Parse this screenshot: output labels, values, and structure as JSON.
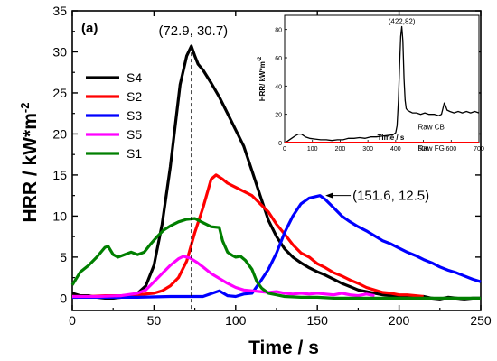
{
  "chart_data": [
    {
      "type": "line",
      "panel_label": "(a)",
      "xlabel": "Time / s",
      "ylabel": "HRR / kW*m",
      "ylabel_superscript": "-2",
      "xlim": [
        0,
        250
      ],
      "ylim": [
        -1.5,
        35
      ],
      "x_ticks": [
        0,
        50,
        100,
        150,
        200,
        250
      ],
      "y_ticks": [
        0,
        5,
        10,
        15,
        20,
        25,
        30,
        35
      ],
      "legend_position": "left",
      "annotations": [
        {
          "text": "(72.9, 30.7)",
          "x": 72.9,
          "y": 30.7,
          "marker": "dashed-vertical-line"
        },
        {
          "text": "(151.6, 12.5)",
          "x": 151.6,
          "y": 12.5,
          "marker": "arrow"
        }
      ],
      "series": [
        {
          "name": "S4",
          "color": "#000000",
          "points": [
            [
              0,
              0.6
            ],
            [
              5,
              0.3
            ],
            [
              10,
              0.3
            ],
            [
              15,
              0.1
            ],
            [
              20,
              0
            ],
            [
              25,
              0
            ],
            [
              30,
              0.1
            ],
            [
              35,
              0.3
            ],
            [
              40,
              0.6
            ],
            [
              45,
              1.5
            ],
            [
              50,
              4
            ],
            [
              55,
              9
            ],
            [
              60,
              16
            ],
            [
              63,
              21
            ],
            [
              66,
              26
            ],
            [
              70,
              29.5
            ],
            [
              72.9,
              30.7
            ],
            [
              75,
              29.5
            ],
            [
              77,
              28.5
            ],
            [
              80,
              27.8
            ],
            [
              85,
              26.2
            ],
            [
              90,
              24.5
            ],
            [
              95,
              22.5
            ],
            [
              100,
              20.5
            ],
            [
              105,
              18.5
            ],
            [
              110,
              15.5
            ],
            [
              115,
              12.5
            ],
            [
              120,
              9.5
            ],
            [
              125,
              7.5
            ],
            [
              130,
              6
            ],
            [
              135,
              5
            ],
            [
              140,
              4.3
            ],
            [
              145,
              3.7
            ],
            [
              150,
              3.2
            ],
            [
              155,
              2.8
            ],
            [
              160,
              2.3
            ],
            [
              165,
              1.8
            ],
            [
              170,
              1.4
            ],
            [
              175,
              1
            ],
            [
              180,
              0.8
            ],
            [
              185,
              0.6
            ],
            [
              190,
              0.4
            ],
            [
              195,
              0.3
            ],
            [
              200,
              0.2
            ],
            [
              205,
              0.3
            ],
            [
              210,
              0.1
            ],
            [
              215,
              0.2
            ],
            [
              220,
              0
            ],
            [
              225,
              -0.1
            ],
            [
              230,
              0.1
            ],
            [
              235,
              0
            ],
            [
              240,
              -0.1
            ],
            [
              245,
              0
            ],
            [
              250,
              0
            ]
          ]
        },
        {
          "name": "S2",
          "color": "#ff0000",
          "points": [
            [
              0,
              0.2
            ],
            [
              10,
              0.2
            ],
            [
              20,
              0.3
            ],
            [
              30,
              0.3
            ],
            [
              40,
              0.4
            ],
            [
              50,
              0.6
            ],
            [
              55,
              0.9
            ],
            [
              60,
              1.5
            ],
            [
              65,
              2.5
            ],
            [
              70,
              4.5
            ],
            [
              75,
              8
            ],
            [
              80,
              11
            ],
            [
              85,
              14.5
            ],
            [
              88,
              15
            ],
            [
              92,
              14.5
            ],
            [
              95,
              14
            ],
            [
              100,
              13.5
            ],
            [
              105,
              13
            ],
            [
              110,
              12.5
            ],
            [
              115,
              11.5
            ],
            [
              120,
              10.5
            ],
            [
              125,
              9
            ],
            [
              130,
              7.8
            ],
            [
              135,
              6.5
            ],
            [
              140,
              5.5
            ],
            [
              145,
              5
            ],
            [
              150,
              4.2
            ],
            [
              155,
              3.7
            ],
            [
              160,
              3.1
            ],
            [
              165,
              2.7
            ],
            [
              170,
              2.2
            ],
            [
              175,
              1.8
            ],
            [
              180,
              1.3
            ],
            [
              185,
              1
            ],
            [
              190,
              0.7
            ],
            [
              195,
              0.6
            ],
            [
              200,
              0.4
            ],
            [
              205,
              0.4
            ],
            [
              210,
              0.3
            ],
            [
              215,
              0.2
            ]
          ]
        },
        {
          "name": "S3",
          "color": "#0000ff",
          "points": [
            [
              0,
              0.1
            ],
            [
              20,
              0.1
            ],
            [
              40,
              0.1
            ],
            [
              60,
              0.2
            ],
            [
              80,
              0.2
            ],
            [
              90,
              0.9
            ],
            [
              95,
              0.3
            ],
            [
              100,
              0.2
            ],
            [
              105,
              0.5
            ],
            [
              110,
              0.6
            ],
            [
              115,
              2
            ],
            [
              120,
              3.5
            ],
            [
              125,
              5.5
            ],
            [
              130,
              8
            ],
            [
              135,
              10
            ],
            [
              140,
              11.5
            ],
            [
              145,
              12.2
            ],
            [
              151.6,
              12.5
            ],
            [
              155,
              12
            ],
            [
              160,
              11
            ],
            [
              165,
              10
            ],
            [
              170,
              9.3
            ],
            [
              175,
              8.7
            ],
            [
              180,
              8.2
            ],
            [
              185,
              7.6
            ],
            [
              190,
              7
            ],
            [
              195,
              6.6
            ],
            [
              200,
              6.1
            ],
            [
              205,
              5.6
            ],
            [
              210,
              5.2
            ],
            [
              215,
              4.7
            ],
            [
              220,
              4.3
            ],
            [
              225,
              3.8
            ],
            [
              230,
              3.4
            ],
            [
              235,
              3.1
            ],
            [
              240,
              2.7
            ],
            [
              245,
              2.3
            ],
            [
              250,
              2
            ]
          ]
        },
        {
          "name": "S5",
          "color": "#ff00ff",
          "points": [
            [
              0,
              0.2
            ],
            [
              15,
              0.2
            ],
            [
              30,
              0.3
            ],
            [
              40,
              0.6
            ],
            [
              45,
              1
            ],
            [
              50,
              2
            ],
            [
              55,
              3
            ],
            [
              60,
              4
            ],
            [
              65,
              4.8
            ],
            [
              68,
              5.1
            ],
            [
              72,
              4.9
            ],
            [
              76,
              4.4
            ],
            [
              80,
              3.8
            ],
            [
              85,
              3
            ],
            [
              90,
              2.4
            ],
            [
              95,
              1.8
            ],
            [
              100,
              1.3
            ],
            [
              105,
              1
            ],
            [
              110,
              0.9
            ],
            [
              115,
              0.8
            ],
            [
              120,
              0.7
            ],
            [
              125,
              0.8
            ],
            [
              130,
              0.6
            ],
            [
              135,
              0.5
            ],
            [
              140,
              0.6
            ],
            [
              145,
              0.5
            ],
            [
              150,
              0.6
            ],
            [
              155,
              0.5
            ],
            [
              160,
              0.4
            ],
            [
              165,
              0.6
            ],
            [
              170,
              0.4
            ],
            [
              175,
              0.3
            ],
            [
              180,
              0.5
            ],
            [
              185,
              0.3
            ]
          ]
        },
        {
          "name": "S1",
          "color": "#007f00",
          "points": [
            [
              0,
              1.6
            ],
            [
              5,
              3.2
            ],
            [
              10,
              4
            ],
            [
              15,
              5
            ],
            [
              20,
              6.2
            ],
            [
              22,
              6.3
            ],
            [
              25,
              5.3
            ],
            [
              28,
              5
            ],
            [
              32,
              5.3
            ],
            [
              36,
              5.6
            ],
            [
              40,
              5.3
            ],
            [
              44,
              5.6
            ],
            [
              48,
              6.6
            ],
            [
              52,
              7.5
            ],
            [
              56,
              8.3
            ],
            [
              60,
              8.8
            ],
            [
              65,
              9.3
            ],
            [
              70,
              9.6
            ],
            [
              75,
              9.7
            ],
            [
              80,
              9.2
            ],
            [
              85,
              8.7
            ],
            [
              90,
              8.6
            ],
            [
              92,
              7
            ],
            [
              95,
              5.6
            ],
            [
              98,
              5.2
            ],
            [
              100,
              5
            ],
            [
              103,
              5.1
            ],
            [
              106,
              4.6
            ],
            [
              110,
              3.5
            ],
            [
              113,
              2
            ],
            [
              116,
              1.2
            ],
            [
              120,
              0.6
            ],
            [
              125,
              0.4
            ],
            [
              130,
              0.2
            ],
            [
              140,
              0.1
            ],
            [
              150,
              0.1
            ],
            [
              160,
              0
            ],
            [
              170,
              0
            ],
            [
              180,
              0
            ],
            [
              190,
              0
            ],
            [
              200,
              0
            ],
            [
              210,
              0
            ],
            [
              220,
              0
            ],
            [
              230,
              0
            ],
            [
              240,
              0
            ],
            [
              250,
              0
            ]
          ]
        }
      ]
    },
    {
      "type": "line",
      "inset": true,
      "xlabel": "Time / s",
      "ylabel": "HRR/ kW*m",
      "ylabel_superscript": "-2",
      "xlim": [
        0,
        700
      ],
      "ylim": [
        0,
        90
      ],
      "x_ticks": [
        0,
        100,
        200,
        300,
        400,
        500,
        600,
        700
      ],
      "y_ticks": [
        0,
        20,
        40,
        60,
        80
      ],
      "annotations": [
        {
          "text": "(422,82)",
          "x": 422,
          "y": 82
        }
      ],
      "series": [
        {
          "name": "Raw CB",
          "color": "#000000",
          "points": [
            [
              0,
              0
            ],
            [
              10,
              1
            ],
            [
              25,
              3
            ],
            [
              40,
              5
            ],
            [
              50,
              6
            ],
            [
              60,
              6
            ],
            [
              75,
              4
            ],
            [
              90,
              3
            ],
            [
              110,
              2.5
            ],
            [
              130,
              2
            ],
            [
              150,
              2
            ],
            [
              170,
              1.5
            ],
            [
              190,
              2
            ],
            [
              210,
              2
            ],
            [
              230,
              3
            ],
            [
              250,
              3
            ],
            [
              270,
              3.5
            ],
            [
              290,
              3
            ],
            [
              310,
              4
            ],
            [
              330,
              4
            ],
            [
              350,
              4.5
            ],
            [
              370,
              5
            ],
            [
              390,
              5.5
            ],
            [
              400,
              7
            ],
            [
              405,
              12
            ],
            [
              410,
              30
            ],
            [
              414,
              55
            ],
            [
              418,
              75
            ],
            [
              422,
              82
            ],
            [
              426,
              72
            ],
            [
              430,
              45
            ],
            [
              434,
              30
            ],
            [
              438,
              24
            ],
            [
              442,
              23
            ],
            [
              450,
              22
            ],
            [
              460,
              21
            ],
            [
              475,
              21
            ],
            [
              490,
              20
            ],
            [
              505,
              21
            ],
            [
              520,
              20
            ],
            [
              540,
              20
            ],
            [
              555,
              19
            ],
            [
              565,
              20
            ],
            [
              570,
              24
            ],
            [
              575,
              28
            ],
            [
              580,
              26
            ],
            [
              585,
              23
            ],
            [
              595,
              22
            ],
            [
              610,
              21
            ],
            [
              625,
              22
            ],
            [
              640,
              21
            ],
            [
              655,
              22
            ],
            [
              670,
              21
            ],
            [
              685,
              22
            ],
            [
              700,
              21
            ]
          ]
        },
        {
          "name": "Raw FG",
          "color": "#ff0000",
          "points": [
            [
              0,
              0
            ],
            [
              700,
              0
            ]
          ]
        }
      ]
    }
  ]
}
